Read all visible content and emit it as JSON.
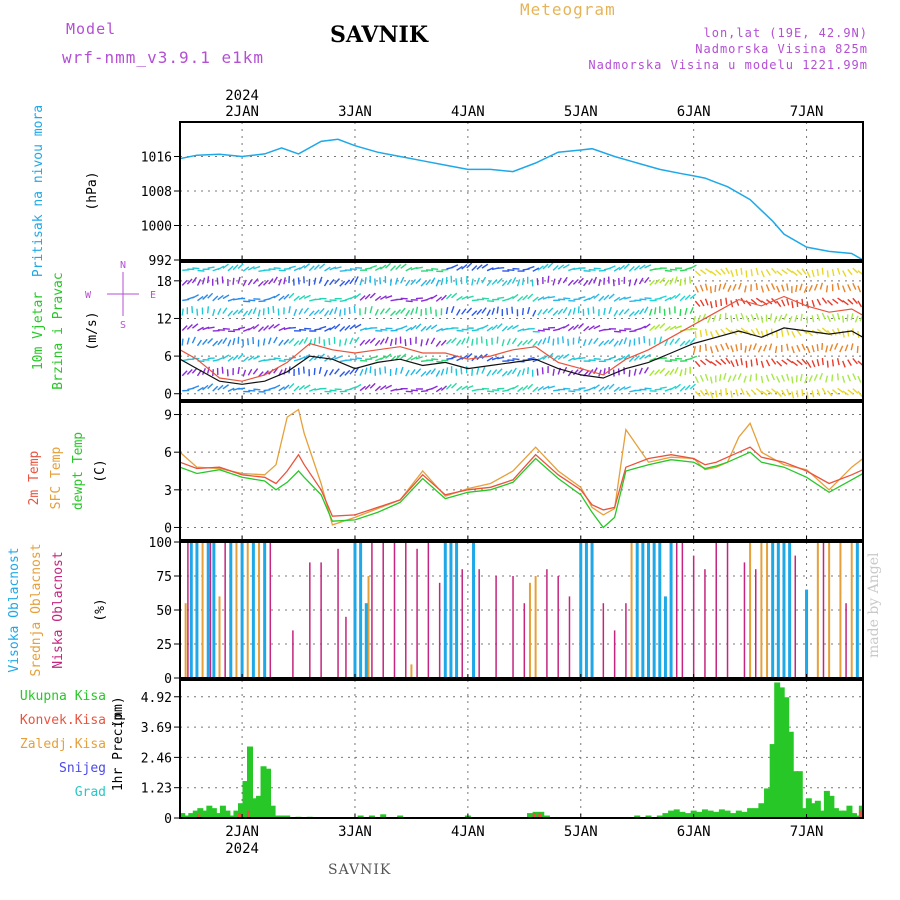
{
  "header": {
    "model_label": "Model",
    "model_name": "wrf-nmm_v3.9.1 e1km",
    "station": "SAVNIK",
    "meteogram": "Meteogram",
    "lonlat": "lon,lat (19E, 42.9N)",
    "elevation": "Nadmorska Visina 825m",
    "model_elevation": "Nadmorska Visina u modelu 1221.99m"
  },
  "footer": {
    "station": "SAVNIK",
    "watermark": "made by Angel"
  },
  "colors": {
    "pressure": "#1fa8e8",
    "wind_speed": "#111111",
    "wind_gust": "#e8543e",
    "temp2m": "#e8543e",
    "temp_sfc": "#e6a03a",
    "dewpt": "#28c728",
    "cloud_high": "#1fa8e8",
    "cloud_mid": "#e6a03a",
    "cloud_low": "#c4257e",
    "precip_total": "#28c728",
    "precip_conv": "#e8543e",
    "grid": "#777777",
    "magenta": "#b44fd4"
  },
  "chart_data": [
    {
      "type": "line",
      "name": "pressure",
      "ylabel_side": "Pritisak na nivou mora",
      "unit": "(hPa)",
      "x_ticks": [
        "2JAN",
        "3JAN",
        "4JAN",
        "5JAN",
        "6JAN",
        "7JAN"
      ],
      "top_labels": {
        "year": "2024",
        "first": "2JAN"
      },
      "ylim": [
        992,
        1024
      ],
      "y_ticks": [
        1016,
        1008,
        1000,
        992
      ],
      "y_tick_labels": [
        "1016",
        "1008",
        "1000",
        "992"
      ],
      "x_range": [
        1.45,
        7.5
      ],
      "series": [
        {
          "x": [
            1.45,
            1.6,
            1.8,
            2.0,
            2.2,
            2.35,
            2.5,
            2.7,
            2.85,
            3.0,
            3.2,
            3.4,
            3.6,
            3.8,
            4.0,
            4.2,
            4.4,
            4.6,
            4.8,
            5.0,
            5.1,
            5.3,
            5.5,
            5.7,
            5.9,
            6.0,
            6.1,
            6.2,
            6.3,
            6.5,
            6.7,
            6.8,
            7.0,
            7.2,
            7.4,
            7.5
          ],
          "values": [
            1015.5,
            1016.3,
            1016.5,
            1016.0,
            1016.6,
            1018.0,
            1016.6,
            1019.5,
            1020.0,
            1018.5,
            1017.0,
            1016.0,
            1015.0,
            1014.0,
            1013.0,
            1013.0,
            1012.5,
            1014.5,
            1017.0,
            1017.5,
            1017.8,
            1016.0,
            1014.5,
            1013.0,
            1012.0,
            1011.5,
            1011.0,
            1010.0,
            1009.0,
            1006.0,
            1001.0,
            998.0,
            995.0,
            994.0,
            993.5,
            992.0
          ]
        }
      ]
    },
    {
      "type": "line",
      "name": "wind",
      "ylabel_side": [
        "10m Vjetar",
        "Brzina i Pravac"
      ],
      "unit": "(m/s)",
      "compass": {
        "n": "N",
        "s": "S",
        "w": "W",
        "e": "E"
      },
      "ylim": [
        -1,
        21
      ],
      "y_ticks": [
        0,
        6,
        12,
        18
      ],
      "y_tick_labels": [
        "0",
        "6",
        "12",
        "18"
      ],
      "x_range": [
        1.45,
        7.5
      ],
      "series": [
        {
          "name": "speed",
          "x": [
            1.45,
            1.6,
            1.8,
            2.0,
            2.2,
            2.4,
            2.6,
            2.8,
            3.0,
            3.2,
            3.4,
            3.6,
            3.8,
            4.0,
            4.2,
            4.4,
            4.6,
            4.8,
            5.0,
            5.2,
            5.4,
            5.6,
            5.8,
            6.0,
            6.2,
            6.4,
            6.6,
            6.8,
            7.0,
            7.2,
            7.4,
            7.5
          ],
          "values": [
            5.5,
            4.0,
            2.0,
            1.5,
            2.0,
            3.5,
            6.0,
            5.5,
            4.0,
            5.0,
            5.5,
            4.5,
            5.0,
            4.0,
            4.5,
            5.0,
            5.5,
            4.0,
            3.0,
            2.5,
            4.0,
            5.0,
            6.5,
            8.0,
            9.0,
            10.0,
            9.0,
            10.5,
            10.0,
            9.5,
            10.0,
            9.0
          ]
        },
        {
          "name": "gust",
          "x": [
            1.45,
            1.6,
            1.8,
            2.0,
            2.2,
            2.4,
            2.6,
            2.8,
            3.0,
            3.2,
            3.4,
            3.6,
            3.8,
            4.0,
            4.2,
            4.4,
            4.6,
            4.8,
            5.0,
            5.2,
            5.4,
            5.6,
            5.8,
            6.0,
            6.2,
            6.4,
            6.6,
            6.8,
            7.0,
            7.2,
            7.4,
            7.5
          ],
          "values": [
            7.0,
            5.5,
            2.5,
            2.0,
            3.0,
            5.0,
            8.0,
            7.0,
            6.5,
            7.0,
            7.5,
            6.5,
            6.5,
            5.5,
            6.0,
            7.0,
            7.5,
            5.0,
            4.0,
            3.0,
            5.5,
            7.0,
            9.0,
            11.0,
            13.0,
            15.0,
            14.0,
            15.5,
            14.0,
            13.0,
            13.5,
            12.5
          ]
        }
      ]
    },
    {
      "type": "line",
      "name": "temperature",
      "ylabel_side": [
        "2m Temp",
        "SFC Temp",
        "dewpt Temp"
      ],
      "unit": "(C)",
      "ylim": [
        -1,
        10
      ],
      "y_ticks": [
        0,
        3,
        6,
        9
      ],
      "y_tick_labels": [
        "0",
        "3",
        "6",
        "9"
      ],
      "x_range": [
        1.45,
        7.5
      ],
      "series": [
        {
          "name": "2m",
          "x": [
            1.45,
            1.6,
            1.8,
            2.0,
            2.2,
            2.3,
            2.4,
            2.5,
            2.55,
            2.7,
            2.8,
            3.0,
            3.2,
            3.4,
            3.6,
            3.8,
            4.0,
            4.2,
            4.4,
            4.6,
            4.8,
            5.0,
            5.1,
            5.2,
            5.3,
            5.4,
            5.6,
            5.8,
            6.0,
            6.1,
            6.2,
            6.3,
            6.4,
            6.5,
            6.6,
            6.8,
            7.0,
            7.2,
            7.4,
            7.5
          ],
          "values": [
            5.2,
            4.7,
            4.8,
            4.2,
            4.0,
            3.5,
            4.5,
            5.8,
            5.0,
            3.0,
            0.9,
            1.0,
            1.6,
            2.2,
            4.2,
            2.6,
            3.0,
            3.2,
            3.8,
            5.8,
            4.2,
            3.0,
            1.8,
            1.4,
            1.6,
            4.8,
            5.5,
            5.8,
            5.5,
            5.0,
            5.2,
            5.6,
            6.0,
            6.4,
            5.6,
            5.2,
            4.5,
            3.5,
            4.2,
            4.6
          ]
        },
        {
          "name": "sfc",
          "x": [
            1.45,
            1.6,
            1.8,
            2.0,
            2.2,
            2.3,
            2.4,
            2.5,
            2.55,
            2.7,
            2.8,
            3.0,
            3.2,
            3.4,
            3.6,
            3.8,
            4.0,
            4.2,
            4.4,
            4.6,
            4.8,
            5.0,
            5.1,
            5.2,
            5.3,
            5.4,
            5.6,
            5.8,
            6.0,
            6.1,
            6.2,
            6.3,
            6.4,
            6.5,
            6.6,
            6.8,
            7.0,
            7.2,
            7.4,
            7.5
          ],
          "values": [
            6.0,
            4.8,
            4.7,
            4.3,
            4.2,
            5.0,
            8.8,
            9.4,
            7.5,
            3.5,
            0.2,
            0.8,
            1.5,
            2.2,
            4.5,
            2.5,
            3.1,
            3.5,
            4.5,
            6.4,
            4.5,
            3.2,
            1.6,
            1.0,
            1.5,
            7.8,
            5.2,
            5.6,
            5.5,
            4.6,
            4.8,
            5.2,
            7.2,
            8.3,
            6.0,
            5.0,
            4.6,
            3.0,
            4.8,
            5.5
          ]
        },
        {
          "name": "dewpt",
          "x": [
            1.45,
            1.6,
            1.8,
            2.0,
            2.2,
            2.3,
            2.4,
            2.5,
            2.55,
            2.7,
            2.8,
            3.0,
            3.2,
            3.4,
            3.6,
            3.8,
            4.0,
            4.2,
            4.4,
            4.6,
            4.8,
            5.0,
            5.1,
            5.2,
            5.3,
            5.4,
            5.6,
            5.8,
            6.0,
            6.1,
            6.2,
            6.3,
            6.4,
            6.5,
            6.6,
            6.8,
            7.0,
            7.2,
            7.4,
            7.5
          ],
          "values": [
            4.8,
            4.3,
            4.6,
            4.0,
            3.7,
            3.0,
            3.6,
            4.5,
            4.0,
            2.6,
            0.5,
            0.6,
            1.2,
            2.0,
            3.9,
            2.3,
            2.8,
            3.0,
            3.6,
            5.5,
            3.9,
            2.6,
            1.2,
            0.0,
            0.8,
            4.5,
            5.0,
            5.4,
            5.2,
            4.7,
            4.9,
            5.2,
            5.6,
            6.0,
            5.2,
            4.8,
            4.0,
            2.8,
            3.8,
            4.3
          ]
        }
      ]
    },
    {
      "type": "bar",
      "name": "clouds",
      "ylabel_side": [
        "Visoka Oblacnost",
        "Srednja Oblacnost",
        "Niska Oblacnost"
      ],
      "unit": "(%)",
      "ylim": [
        0,
        100
      ],
      "y_ticks": [
        0,
        25,
        50,
        75,
        100
      ],
      "y_tick_labels": [
        "0",
        "25",
        "50",
        "75",
        "100"
      ],
      "x_range": [
        1.45,
        7.5
      ],
      "series": [
        {
          "name": "high",
          "x": [
            1.55,
            1.6,
            1.7,
            1.75,
            1.9,
            2.0,
            2.1,
            2.2,
            3.0,
            3.05,
            3.1,
            3.8,
            3.85,
            3.9,
            4.05,
            5.0,
            5.05,
            5.1,
            5.5,
            5.55,
            5.6,
            5.65,
            5.7,
            5.75,
            5.8,
            6.7,
            6.75,
            6.8,
            6.85,
            7.0,
            7.45
          ],
          "values": [
            100,
            100,
            100,
            100,
            100,
            100,
            100,
            100,
            100,
            100,
            55,
            100,
            100,
            100,
            100,
            100,
            100,
            100,
            100,
            100,
            100,
            100,
            100,
            60,
            100,
            100,
            100,
            100,
            100,
            65,
            100
          ]
        },
        {
          "name": "mid",
          "x": [
            1.5,
            1.65,
            1.8,
            1.95,
            2.05,
            2.15,
            3.12,
            3.5,
            4.55,
            4.6,
            5.45,
            5.5,
            5.55,
            6.5,
            6.6,
            6.65,
            7.1,
            7.2,
            7.3,
            7.4,
            7.5
          ],
          "values": [
            55,
            100,
            60,
            100,
            100,
            100,
            75,
            10,
            70,
            75,
            100,
            100,
            100,
            100,
            100,
            100,
            100,
            100,
            100,
            100,
            100
          ]
        },
        {
          "name": "low",
          "x": [
            1.52,
            1.72,
            1.85,
            2.25,
            2.45,
            2.6,
            2.7,
            2.85,
            2.92,
            3.15,
            3.25,
            3.35,
            3.45,
            3.55,
            3.65,
            3.75,
            3.95,
            4.1,
            4.25,
            4.4,
            4.5,
            4.7,
            4.8,
            4.9,
            5.2,
            5.3,
            5.4,
            5.85,
            5.9,
            6.0,
            6.1,
            6.2,
            6.3,
            6.45,
            6.55,
            6.9,
            7.15,
            7.35
          ],
          "values": [
            100,
            100,
            100,
            100,
            35,
            85,
            85,
            95,
            45,
            100,
            100,
            100,
            100,
            95,
            100,
            70,
            80,
            80,
            75,
            75,
            55,
            80,
            75,
            60,
            55,
            35,
            55,
            100,
            100,
            90,
            80,
            100,
            100,
            85,
            80,
            90,
            100,
            55
          ]
        }
      ]
    },
    {
      "type": "bar",
      "name": "precipitation",
      "ylabel_side": "1hr Precip",
      "unit": "(mm)",
      "legend": [
        "Ukupna Kisa",
        "Konvek.Kisa",
        "Zaledj.Kisa",
        "Snijeg",
        "Grad"
      ],
      "ylim": [
        0,
        5.6
      ],
      "y_ticks": [
        0,
        1.23,
        2.46,
        3.69,
        4.92
      ],
      "y_tick_labels": [
        "0",
        "1.23",
        "2.46",
        "3.69",
        "4.92"
      ],
      "x_range": [
        1.45,
        7.5
      ],
      "x_ticks_bottom": [
        "2JAN",
        "3JAN",
        "4JAN",
        "5JAN",
        "6JAN",
        "7JAN"
      ],
      "bottom_year": "2024",
      "series": [
        {
          "name": "total",
          "x": [
            1.47,
            1.51,
            1.55,
            1.59,
            1.63,
            1.67,
            1.71,
            1.75,
            1.79,
            1.83,
            1.87,
            1.91,
            1.95,
            1.99,
            2.03,
            2.07,
            2.11,
            2.15,
            2.19,
            2.23,
            2.27,
            2.31,
            2.35,
            2.4,
            2.5,
            2.6,
            3.05,
            3.15,
            3.25,
            3.4,
            4.0,
            4.55,
            4.6,
            4.65,
            4.7,
            5.5,
            5.6,
            5.7,
            5.75,
            5.8,
            5.85,
            5.9,
            5.95,
            6.0,
            6.05,
            6.1,
            6.15,
            6.2,
            6.25,
            6.3,
            6.35,
            6.4,
            6.45,
            6.5,
            6.55,
            6.6,
            6.65,
            6.7,
            6.74,
            6.78,
            6.82,
            6.86,
            6.9,
            6.94,
            6.98,
            7.02,
            7.06,
            7.1,
            7.14,
            7.18,
            7.22,
            7.26,
            7.3,
            7.34,
            7.38,
            7.42,
            7.46,
            7.49
          ],
          "values": [
            0.2,
            0.1,
            0.2,
            0.3,
            0.4,
            0.3,
            0.5,
            0.4,
            0.2,
            0.5,
            0.3,
            0.1,
            0.3,
            0.6,
            1.5,
            2.9,
            0.8,
            0.9,
            2.1,
            2.0,
            0.5,
            0.1,
            0.1,
            0.1,
            0.05,
            0.05,
            0.1,
            0.1,
            0.15,
            0.1,
            0.1,
            0.2,
            0.25,
            0.25,
            0.1,
            0.1,
            0.1,
            0.1,
            0.2,
            0.3,
            0.35,
            0.25,
            0.2,
            0.3,
            0.25,
            0.35,
            0.3,
            0.25,
            0.35,
            0.3,
            0.2,
            0.3,
            0.25,
            0.4,
            0.4,
            0.6,
            1.2,
            3.0,
            5.5,
            5.3,
            4.9,
            3.5,
            1.9,
            1.9,
            0.4,
            0.8,
            0.6,
            0.7,
            0.3,
            1.1,
            0.9,
            0.4,
            0.3,
            0.3,
            0.5,
            0.2,
            0.1,
            0.5
          ]
        },
        {
          "name": "convective",
          "x": [
            1.63,
            1.99,
            2.07,
            4.6,
            4.65,
            7.49
          ],
          "values": [
            0.15,
            0.2,
            0.3,
            0.2,
            0.2,
            0.3
          ]
        }
      ]
    }
  ]
}
